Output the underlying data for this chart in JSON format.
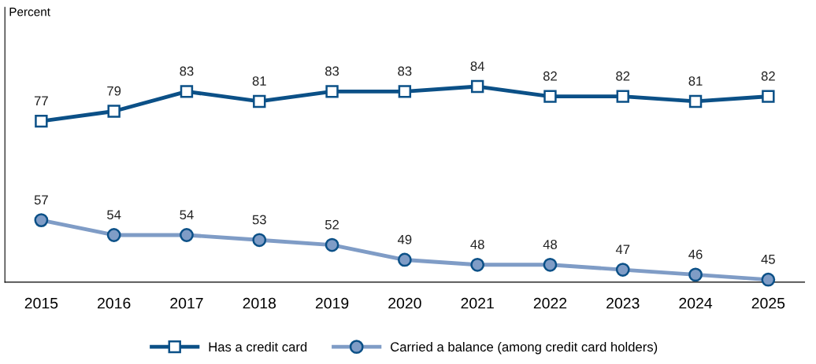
{
  "chart_data": {
    "type": "line",
    "ylabel": "Percent",
    "categories": [
      "2015",
      "2016",
      "2017",
      "2018",
      "2019",
      "2020",
      "2021",
      "2022",
      "2023",
      "2024",
      "2025"
    ],
    "series": [
      {
        "name": "Has a credit card",
        "color": "#0b5087",
        "marker": "square",
        "values": [
          77,
          79,
          83,
          81,
          83,
          83,
          84,
          82,
          82,
          81,
          82
        ]
      },
      {
        "name": "Carried a balance (among credit card holders)",
        "color": "#7f9cc6",
        "marker": "circle",
        "values": [
          57,
          54,
          54,
          53,
          52,
          49,
          48,
          48,
          47,
          46,
          45
        ]
      }
    ],
    "ylim": [
      44.5,
      100
    ],
    "tick_labels": "x",
    "data_labels": true,
    "grid": false,
    "legend": "bottom",
    "line_style": "solid"
  }
}
